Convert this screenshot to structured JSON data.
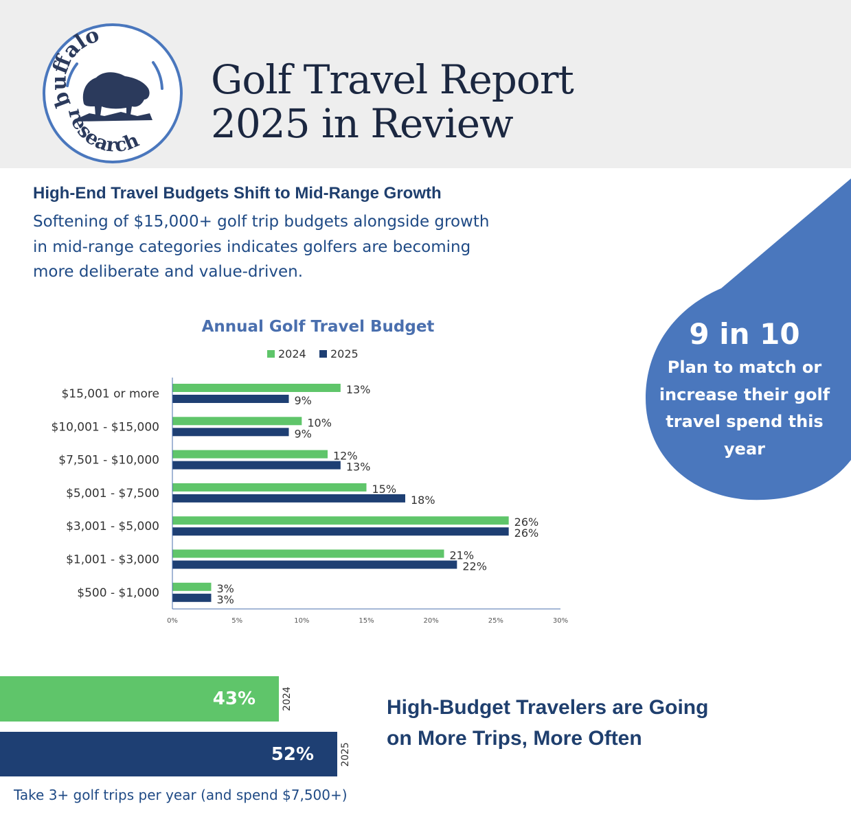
{
  "header": {
    "logo": {
      "text_top": "buffalo",
      "text_bottom": "research"
    },
    "title_line1": "Golf Travel Report",
    "title_line2": "2025 in Review"
  },
  "section1": {
    "heading": "High-End Travel Budgets Shift to Mid-Range Growth",
    "body_lines": [
      "Softening of $15,000+ golf trip budgets alongside growth",
      "in mid-range categories indicates golfers are becoming",
      "more deliberate and value-driven."
    ]
  },
  "callout": {
    "big": "9 in 10",
    "lines": [
      "Plan to match or",
      "increase their golf",
      "travel spend this",
      "year"
    ]
  },
  "chart_data": [
    {
      "type": "bar",
      "orientation": "horizontal",
      "title": "Annual Golf Travel Budget",
      "categories": [
        "$15,001 or more",
        "$10,001 - $15,000",
        "$7,501 - $10,000",
        "$5,001 - $7,500",
        "$3,001 - $5,000",
        "$1,001 - $3,000",
        "$500 - $1,000"
      ],
      "series": [
        {
          "name": "2024",
          "values": [
            13,
            10,
            12,
            15,
            26,
            21,
            3
          ],
          "color": "#5fc56a"
        },
        {
          "name": "2025",
          "values": [
            9,
            9,
            13,
            18,
            26,
            22,
            3
          ],
          "color": "#1e3f73"
        }
      ],
      "value_suffix": "%",
      "xlim": [
        0,
        30
      ],
      "xticks": [
        "0%",
        "5%",
        "10%",
        "15%",
        "20%",
        "25%",
        "30%"
      ],
      "legend": "top",
      "grid": false
    },
    {
      "type": "bar",
      "orientation": "horizontal",
      "categories": [
        "2024",
        "2025"
      ],
      "values": [
        43,
        52
      ],
      "labels": [
        "43%",
        "52%"
      ],
      "colors": [
        "#5fc56a",
        "#1e3f73"
      ],
      "caption": "Take 3+ golf trips per year (and spend $7,500+)"
    }
  ],
  "section2": {
    "heading_lines": [
      "High-Budget Travelers are Going",
      "on More Trips, More Often"
    ]
  },
  "colors": {
    "header_bg": "#eeeeee",
    "navy": "#1e3f73",
    "green": "#5fc56a",
    "accent_blue": "#4a77bd",
    "title_dark": "#1b2740",
    "heading_blue": "#1f3f6e",
    "body_blue": "#1f4a85"
  }
}
